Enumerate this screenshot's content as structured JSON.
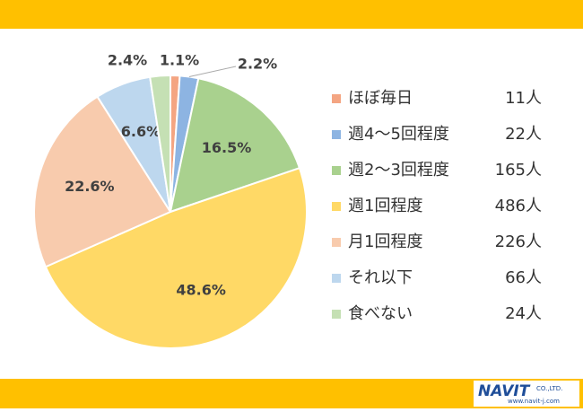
{
  "chart_data": {
    "type": "pie",
    "categories": [
      "ほぼ毎日",
      "週4～5回程度",
      "週2～3回程度",
      "週1回程度",
      "月1回程度",
      "それ以下",
      "食べない"
    ],
    "values": [
      1.1,
      2.2,
      16.5,
      48.6,
      22.6,
      6.6,
      2.4
    ],
    "value_labels": [
      "1.1%",
      "2.2%",
      "16.5%",
      "48.6%",
      "22.6%",
      "6.6%",
      "2.4%"
    ],
    "legend_counts": [
      "11人",
      "22人",
      "165人",
      "486人",
      "226人",
      "66人",
      "24人"
    ],
    "colors": [
      "#f4a582",
      "#8db4e2",
      "#a9d18e",
      "#ffd966",
      "#f8cbad",
      "#bdd7ee",
      "#c5e0b4"
    ],
    "legend": "right"
  },
  "footer": {
    "logo": "NAVIT",
    "company": "CO.,LTD.",
    "url": "www.navit-j.com"
  }
}
